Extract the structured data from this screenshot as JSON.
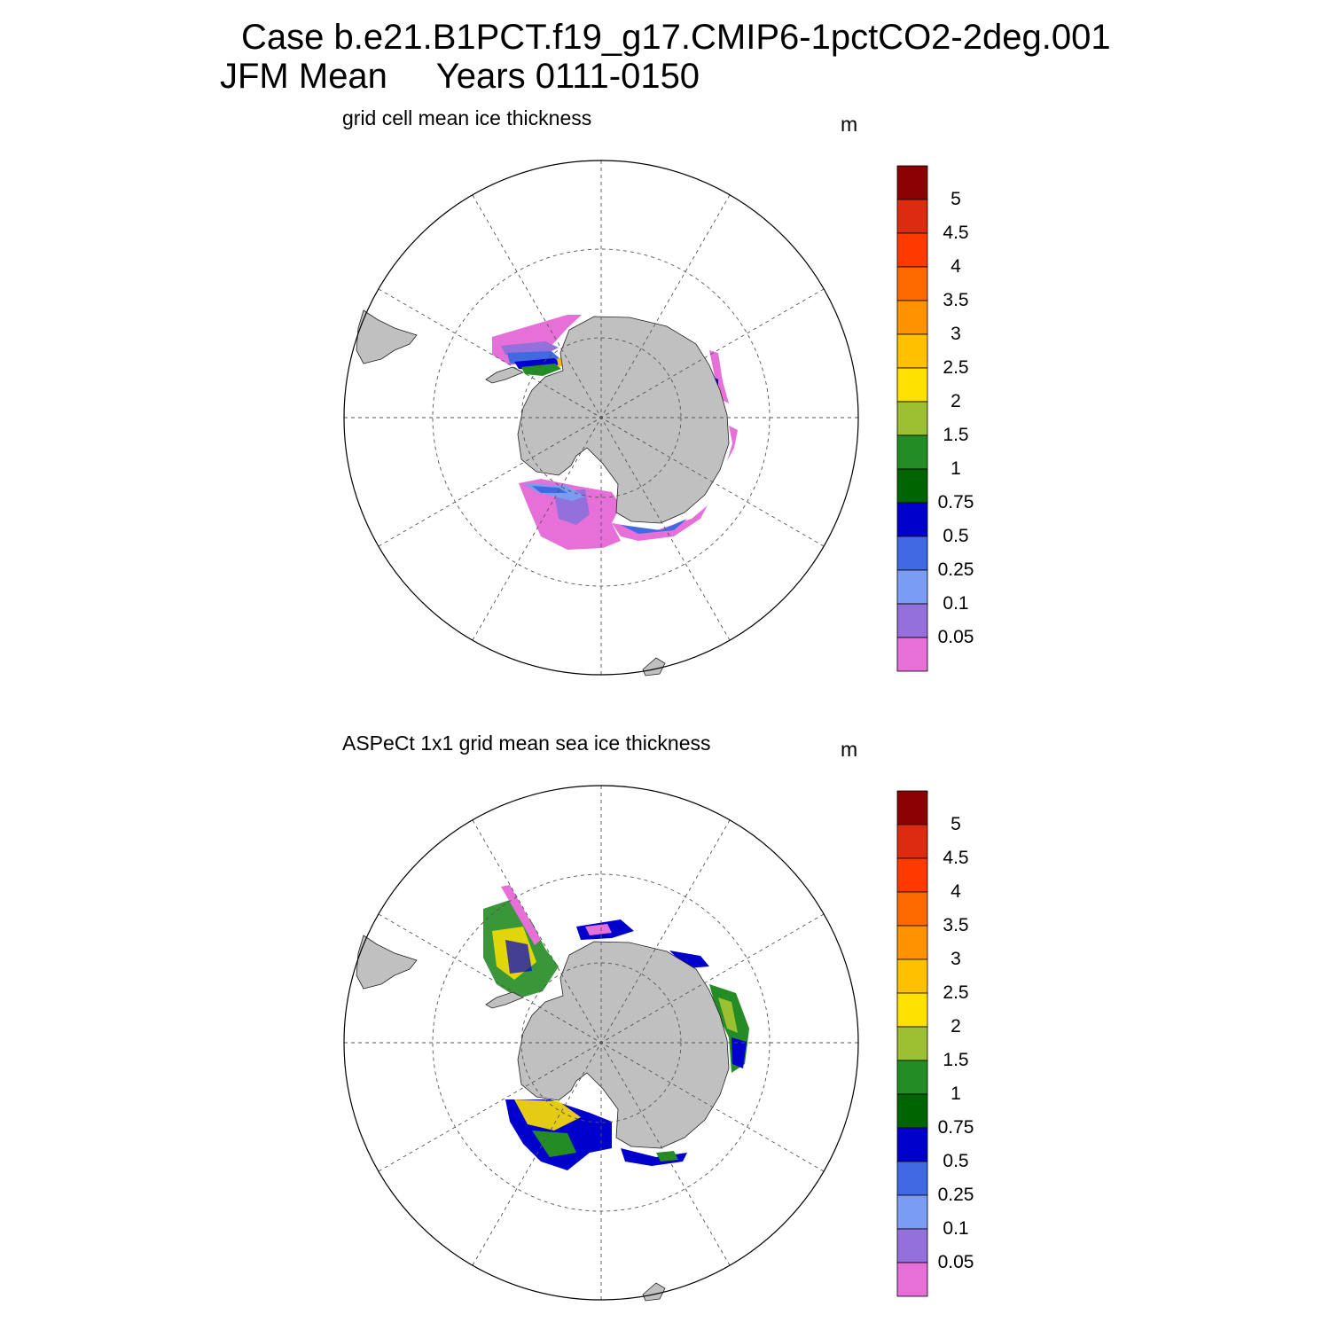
{
  "figure": {
    "title_line1": "Case b.e21.B1PCT.f19_g17.CMIP6-1pctCO2-2deg.001",
    "title_line2": "JFM Mean     Years 0111-0150"
  },
  "panels": [
    {
      "title": "grid cell mean ice thickness",
      "unit": "m"
    },
    {
      "title": "ASPeCt 1x1 grid mean sea ice thickness",
      "unit": "m"
    }
  ],
  "colorbar": {
    "labels": [
      "5",
      "4.5",
      "4",
      "3.5",
      "3",
      "2.5",
      "2",
      "1.5",
      "1",
      "0.75",
      "0.5",
      "0.25",
      "0.1",
      "0.05"
    ],
    "colors": [
      "#8b0000",
      "#dd2b12",
      "#ff3a00",
      "#ff6a00",
      "#ff9200",
      "#ffc000",
      "#ffe100",
      "#9dbf32",
      "#248c24",
      "#006400",
      "#0000cd",
      "#4169e1",
      "#7a9cf2",
      "#9370db",
      "#e66fd8"
    ]
  },
  "colors": {
    "land": "#c0c0c0",
    "grid": "#555555"
  }
}
